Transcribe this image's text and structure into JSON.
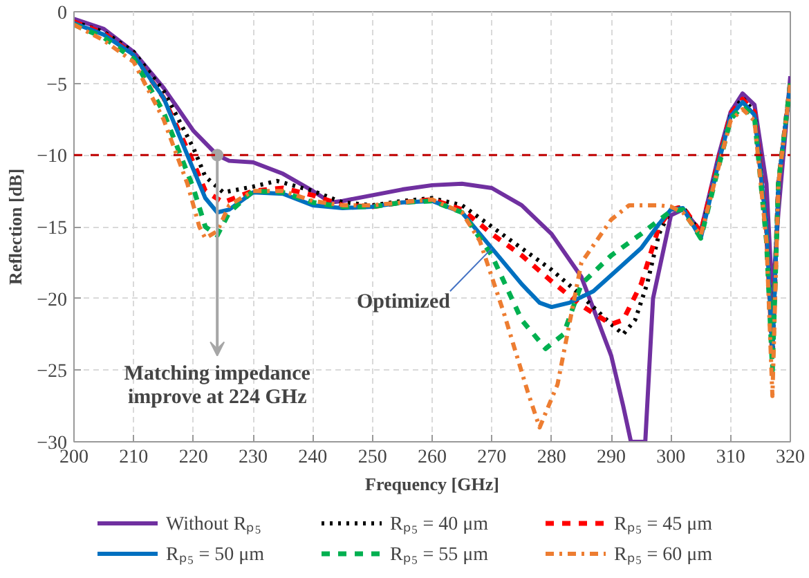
{
  "chart_data": {
    "type": "line",
    "xlabel": "Frequency [GHz]",
    "ylabel": "Reflection [dB]",
    "xlim": [
      200,
      320
    ],
    "ylim": [
      -30,
      0
    ],
    "xticks": [
      200,
      210,
      220,
      230,
      240,
      250,
      260,
      270,
      280,
      290,
      300,
      310,
      320
    ],
    "yticks": [
      -30,
      -25,
      -20,
      -15,
      -10,
      -5,
      0
    ],
    "grid": true,
    "legend": "bottom",
    "marker": "none",
    "ref_lines": [
      {
        "axis": "y",
        "value": -10,
        "color": "#c00000",
        "line_style": "dashed"
      }
    ],
    "annotations": [
      {
        "text": "Matching impedance improve at 224 GHz",
        "x": 224,
        "y": -10
      },
      {
        "text": "Optimized",
        "x": 270,
        "y": -16.5
      }
    ],
    "series": [
      {
        "name": "Without Rₚ₅",
        "color": "#7030a0",
        "line_style": "solid",
        "x": [
          200,
          205,
          210,
          215,
          220,
          224,
          226,
          230,
          235,
          240,
          243,
          245,
          250,
          255,
          260,
          265,
          270,
          275,
          280,
          285,
          290,
          292,
          293.3,
          295.7,
          297,
          300,
          302,
          305,
          308,
          310,
          312,
          314,
          316,
          317,
          318,
          320
        ],
        "values": [
          -0.5,
          -1.2,
          -2.8,
          -5.3,
          -8.3,
          -10,
          -10.4,
          -10.5,
          -11.3,
          -12.5,
          -13.3,
          -13.2,
          -12.8,
          -12.4,
          -12.1,
          -12,
          -12.3,
          -13.5,
          -15.5,
          -18.5,
          -24,
          -27.5,
          -30,
          -30,
          -20,
          -14.2,
          -13.8,
          -15.3,
          -10,
          -7,
          -5.7,
          -6.5,
          -12,
          -20,
          -14,
          -4.5
        ]
      },
      {
        "name": "Rₚ₅ = 40 μm",
        "color": "#000000",
        "line_style": "dotted",
        "x": [
          200,
          205,
          210,
          215,
          220,
          222,
          225,
          230,
          234,
          240,
          245,
          250,
          255,
          260,
          265,
          270,
          275,
          280,
          285,
          290,
          292,
          294,
          296,
          298,
          300,
          302,
          305,
          308,
          310,
          312,
          314,
          316,
          317,
          318,
          320
        ],
        "values": [
          -0.7,
          -1.4,
          -2.8,
          -5.5,
          -9.5,
          -11.5,
          -12.6,
          -12.2,
          -11.8,
          -12.5,
          -13.3,
          -13.5,
          -13.2,
          -13,
          -13.5,
          -15,
          -16.5,
          -18,
          -19.8,
          -21.8,
          -22.5,
          -21.5,
          -19,
          -15.5,
          -13.8,
          -13.6,
          -15.5,
          -10.5,
          -7.2,
          -6,
          -7,
          -15,
          -24,
          -12,
          -5
        ]
      },
      {
        "name": "Rₚ₅ = 45 μm",
        "color": "#ff0000",
        "line_style": "dashed",
        "x": [
          200,
          205,
          210,
          215,
          220,
          222,
          225,
          230,
          235,
          240,
          245,
          250,
          255,
          260,
          265,
          270,
          275,
          280,
          285,
          290,
          292,
          295,
          298,
          300,
          302,
          305,
          308,
          310,
          312,
          314,
          316,
          317,
          318,
          320
        ],
        "values": [
          -0.7,
          -1.5,
          -3,
          -6,
          -10.5,
          -12.5,
          -13.3,
          -12.5,
          -12.3,
          -12.8,
          -13.5,
          -13.6,
          -13.3,
          -13.1,
          -13.8,
          -15.5,
          -17,
          -18.8,
          -20.5,
          -21.8,
          -21.5,
          -19,
          -15,
          -13.8,
          -13.6,
          -15.4,
          -10.3,
          -7.1,
          -6.1,
          -7,
          -15,
          -24,
          -12,
          -5
        ]
      },
      {
        "name": "Rₚ₅ = 50 μm",
        "color": "#0070c0",
        "line_style": "solid",
        "x": [
          200,
          205,
          210,
          215,
          220,
          222,
          224,
          226,
          230,
          235,
          240,
          245,
          250,
          255,
          260,
          265,
          270,
          275,
          278,
          280,
          283,
          287,
          291,
          295,
          298,
          300,
          302,
          305,
          308,
          310,
          312,
          314,
          316,
          317,
          318,
          320
        ],
        "values": [
          -0.8,
          -1.6,
          -3,
          -6,
          -11,
          -13,
          -14,
          -13.8,
          -12.6,
          -12.7,
          -13.5,
          -13.7,
          -13.6,
          -13.3,
          -13.2,
          -14,
          -16.5,
          -19,
          -20.3,
          -20.6,
          -20.3,
          -19.5,
          -18,
          -16.5,
          -14.8,
          -13.8,
          -13.7,
          -15.8,
          -10.5,
          -7.3,
          -6.3,
          -7.2,
          -15,
          -24,
          -12,
          -5
        ]
      },
      {
        "name": "Rₚ₅ = 55 μm",
        "color": "#00b050",
        "line_style": "dashed",
        "x": [
          200,
          205,
          210,
          215,
          220,
          222,
          224,
          226,
          230,
          235,
          240,
          245,
          250,
          255,
          260,
          265,
          270,
          275,
          279,
          282,
          285,
          290,
          295,
          300,
          302,
          305,
          308,
          310,
          312,
          314,
          316,
          317,
          318,
          320
        ],
        "values": [
          -0.9,
          -1.8,
          -3.3,
          -7,
          -12.3,
          -15,
          -15.6,
          -14,
          -12.5,
          -12.6,
          -13.3,
          -13.6,
          -13.6,
          -13.3,
          -13.2,
          -14,
          -17,
          -21.5,
          -23.5,
          -22.5,
          -19,
          -17,
          -15.5,
          -13.9,
          -13.8,
          -15.8,
          -10.8,
          -7.5,
          -6.6,
          -7.4,
          -16,
          -25,
          -12,
          -5
        ]
      },
      {
        "name": "Rₚ₅ = 60 μm",
        "color": "#ed7d31",
        "line_style": "dashdot",
        "x": [
          200,
          205,
          210,
          215,
          219,
          221,
          222,
          224,
          226,
          230,
          235,
          240,
          245,
          250,
          255,
          260,
          265,
          268,
          272,
          276,
          278,
          281,
          285,
          290,
          293,
          298,
          300,
          302,
          305,
          308,
          310,
          312,
          314,
          316,
          317,
          318,
          320
        ],
        "values": [
          -0.9,
          -2,
          -3.5,
          -7.5,
          -12,
          -15,
          -15.8,
          -15.3,
          -13.5,
          -12.5,
          -12.5,
          -13.2,
          -13.5,
          -13.5,
          -13.3,
          -13.1,
          -14,
          -16,
          -21,
          -26.5,
          -29,
          -26,
          -17.5,
          -14.5,
          -13.5,
          -13.5,
          -13.6,
          -14,
          -15.6,
          -10.8,
          -7.6,
          -6.8,
          -7.6,
          -16,
          -26.8,
          -12,
          -5
        ]
      }
    ]
  }
}
